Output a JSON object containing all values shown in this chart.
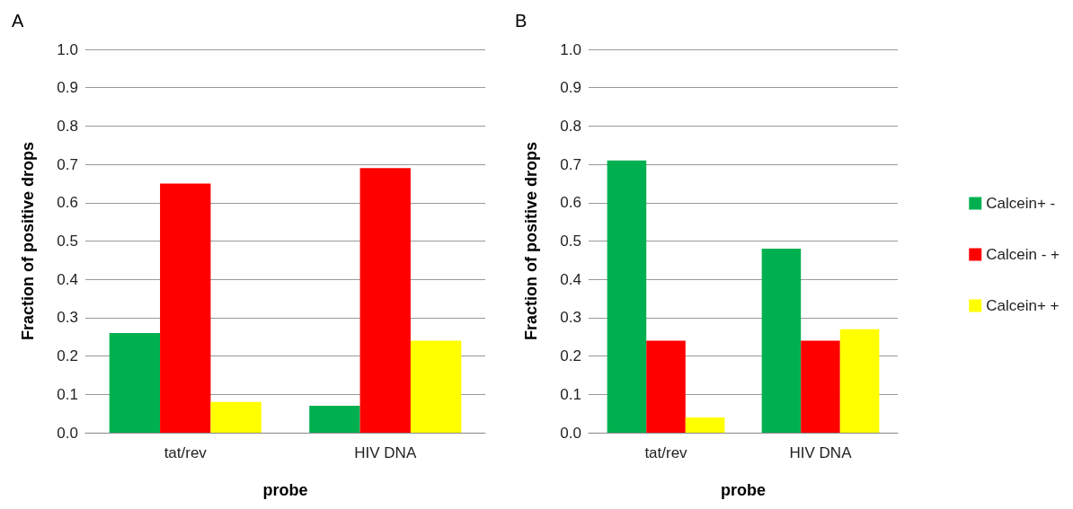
{
  "chart_data": [
    {
      "type": "bar",
      "title": "A",
      "xlabel": "probe",
      "ylabel": "Fraction of positive drops",
      "categories": [
        "tat/rev",
        "HIV DNA"
      ],
      "series": [
        {
          "color": "#00b050",
          "values": [
            0.26,
            0.07
          ]
        },
        {
          "color": "#ff0000",
          "values": [
            0.65,
            0.69
          ]
        },
        {
          "color": "#ffff00",
          "values": [
            0.08,
            0.24
          ]
        }
      ],
      "ylim": [
        0,
        1
      ],
      "yticks": [
        {
          "value": 0,
          "label": "0.0"
        },
        {
          "value": 0.1,
          "label": "0.1"
        },
        {
          "value": 0.2,
          "label": "0.2"
        },
        {
          "value": 0.3,
          "label": "0.3"
        },
        {
          "value": 0.4,
          "label": "0.4"
        },
        {
          "value": 0.5,
          "label": "0.5"
        },
        {
          "value": 0.6,
          "label": "0.6"
        },
        {
          "value": 0.7,
          "label": "0.7"
        },
        {
          "value": 0.8,
          "label": "0.8"
        },
        {
          "value": 0.9,
          "label": "0.9"
        },
        {
          "value": 1,
          "label": "1.0"
        }
      ],
      "grid": "y",
      "legend": false
    },
    {
      "type": "bar",
      "title": "B",
      "xlabel": "probe",
      "ylabel": "Fraction of positive drops",
      "categories": [
        "tat/rev",
        "HIV DNA"
      ],
      "series": [
        {
          "name": "Calcein+ -",
          "color": "#00b050",
          "values": [
            0.71,
            0.48
          ]
        },
        {
          "name": "Calcein - +",
          "color": "#ff0000",
          "values": [
            0.24,
            0.24
          ]
        },
        {
          "name": "Calcein+ +",
          "color": "#ffff00",
          "values": [
            0.04,
            0.27
          ]
        }
      ],
      "ylim": [
        0,
        1
      ],
      "yticks": [
        {
          "value": 0,
          "label": "0.0"
        },
        {
          "value": 0.1,
          "label": "0.1"
        },
        {
          "value": 0.2,
          "label": "0.2"
        },
        {
          "value": 0.3,
          "label": "0.3"
        },
        {
          "value": 0.4,
          "label": "0.4"
        },
        {
          "value": 0.5,
          "label": "0.5"
        },
        {
          "value": 0.6,
          "label": "0.6"
        },
        {
          "value": 0.7,
          "label": "0.7"
        },
        {
          "value": 0.8,
          "label": "0.8"
        },
        {
          "value": 0.9,
          "label": "0.9"
        },
        {
          "value": 1,
          "label": "1.0"
        }
      ],
      "grid": "y",
      "legend": "right"
    }
  ]
}
